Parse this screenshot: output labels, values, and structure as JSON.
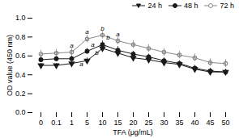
{
  "chart_data": {
    "type": "line",
    "categories": [
      "0",
      "0.1",
      "1",
      "5",
      "10",
      "15",
      "20",
      "25",
      "30",
      "35",
      "40",
      "45",
      "50"
    ],
    "series": [
      {
        "name": "24 h",
        "color": "#1a1a1a",
        "marker": "triangle_down",
        "line_style": "solid",
        "values": [
          0.5,
          0.5,
          0.52,
          0.55,
          0.68,
          0.63,
          0.58,
          0.56,
          0.53,
          0.51,
          0.46,
          0.43,
          0.43
        ],
        "errors": [
          0.02,
          0.02,
          0.02,
          0.03,
          0.03,
          0.03,
          0.02,
          0.02,
          0.02,
          0.02,
          0.02,
          0.02,
          0.02
        ]
      },
      {
        "name": "48 h",
        "color": "#1a1a1a",
        "marker": "circle",
        "line_style": "solid",
        "values": [
          0.56,
          0.57,
          0.57,
          0.65,
          0.72,
          0.66,
          0.62,
          0.59,
          0.55,
          0.52,
          0.47,
          0.44,
          0.43
        ],
        "errors": [
          0.03,
          0.03,
          0.03,
          0.03,
          0.04,
          0.04,
          0.03,
          0.03,
          0.03,
          0.03,
          0.03,
          0.03,
          0.03
        ]
      },
      {
        "name": "72 h",
        "color": "#888888",
        "marker": "circle_open",
        "line_style": "solid",
        "values": [
          0.62,
          0.63,
          0.64,
          0.78,
          0.82,
          0.76,
          0.72,
          0.68,
          0.64,
          0.61,
          0.58,
          0.53,
          0.52
        ],
        "errors": [
          0.04,
          0.04,
          0.04,
          0.04,
          0.04,
          0.04,
          0.04,
          0.04,
          0.04,
          0.04,
          0.04,
          0.04,
          0.04
        ]
      }
    ],
    "annotations": [
      {
        "text": "a",
        "series": "24 h",
        "category": "5",
        "y": 0.49
      },
      {
        "text": "b",
        "series": "24 h",
        "category": "10",
        "y": 0.615
      },
      {
        "text": "a",
        "series": "48 h",
        "category": "5",
        "y": 0.7
      },
      {
        "text": "b",
        "series": "48 h",
        "category": "10",
        "y": 0.77
      },
      {
        "text": "a",
        "series": "72 h",
        "category": "1",
        "y": 0.69
      },
      {
        "text": "a",
        "series": "72 h",
        "category": "5",
        "y": 0.83
      },
      {
        "text": "b",
        "series": "72 h",
        "category": "10",
        "y": 0.87
      },
      {
        "text": "a",
        "series": "72 h",
        "category": "15",
        "y": 0.81
      }
    ],
    "xlabel": "TFA (μg/mL)",
    "ylabel": "OD value (450 nm)",
    "ylim": [
      0.0,
      1.0
    ],
    "yticks": [
      {
        "value": 0.0,
        "label": "0.0"
      },
      0.2,
      0.4,
      0.6,
      0.8,
      {
        "value": 1.0,
        "label": "1.0"
      }
    ],
    "grid": false,
    "legend": "upper right"
  }
}
